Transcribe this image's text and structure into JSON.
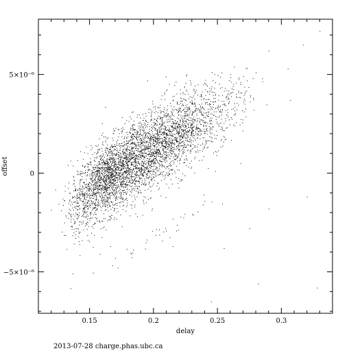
{
  "chart_data": {
    "type": "scatter",
    "xlabel": "delay",
    "ylabel": "offset",
    "xlim": [
      0.11,
      0.34
    ],
    "ylim": [
      -7.1e-06,
      7.8e-06
    ],
    "grid": false,
    "x_ticks": [
      {
        "value": 0.15,
        "label": "0.15"
      },
      {
        "value": 0.2,
        "label": "0.2"
      },
      {
        "value": 0.25,
        "label": "0.25"
      },
      {
        "value": 0.3,
        "label": "0.3"
      }
    ],
    "y_ticks": [
      {
        "value": 5e-06,
        "label": "5×10⁻⁶"
      },
      {
        "value": 0,
        "label": "0"
      },
      {
        "value": -5e-06,
        "label": "−5×10⁻⁶"
      }
    ],
    "point_color": "#000000",
    "clusters": [
      {
        "x_center": 0.165,
        "y_center": -2e-07,
        "x_spread": 0.012,
        "y_spread": 9e-07,
        "count": 1400
      },
      {
        "x_center": 0.19,
        "y_center": 9e-07,
        "x_spread": 0.014,
        "y_spread": 1e-06,
        "count": 1300
      },
      {
        "x_center": 0.215,
        "y_center": 1.8e-06,
        "x_spread": 0.013,
        "y_spread": 1e-06,
        "count": 900
      },
      {
        "x_center": 0.24,
        "y_center": 2.8e-06,
        "x_spread": 0.013,
        "y_spread": 9e-07,
        "count": 400
      },
      {
        "x_center": 0.145,
        "y_center": -1.4e-06,
        "x_spread": 0.008,
        "y_spread": 8e-07,
        "count": 300
      },
      {
        "x_center": 0.265,
        "y_center": 3.8e-06,
        "x_spread": 0.012,
        "y_spread": 7e-07,
        "count": 80
      },
      {
        "x_center": 0.2,
        "y_center": -3.2e-06,
        "x_spread": 0.03,
        "y_spread": 3e-07,
        "count": 40
      }
    ],
    "outliers": [
      {
        "x": 0.33,
        "y": 7.2e-06
      },
      {
        "x": 0.317,
        "y": 6.5e-06
      },
      {
        "x": 0.29,
        "y": 6.2e-06
      },
      {
        "x": 0.305,
        "y": 5.3e-06
      },
      {
        "x": 0.285,
        "y": 4.8e-06
      },
      {
        "x": 0.307,
        "y": 3.7e-06
      },
      {
        "x": 0.32,
        "y": -1.2e-06
      },
      {
        "x": 0.282,
        "y": -5.6e-06
      },
      {
        "x": 0.328,
        "y": -5.8e-06
      },
      {
        "x": 0.245,
        "y": -6.5e-06
      },
      {
        "x": 0.255,
        "y": -3.8e-06
      },
      {
        "x": 0.17,
        "y": -4.3e-06
      },
      {
        "x": 0.142,
        "y": -3.6e-06
      },
      {
        "x": 0.215,
        "y": -3.7e-06
      },
      {
        "x": 0.275,
        "y": -2.8e-06
      },
      {
        "x": 0.268,
        "y": 5e-07
      },
      {
        "x": 0.29,
        "y": -1.8e-06
      }
    ]
  },
  "footer": {
    "text": "2013-07-28  charge.phas.ubc.ca"
  }
}
